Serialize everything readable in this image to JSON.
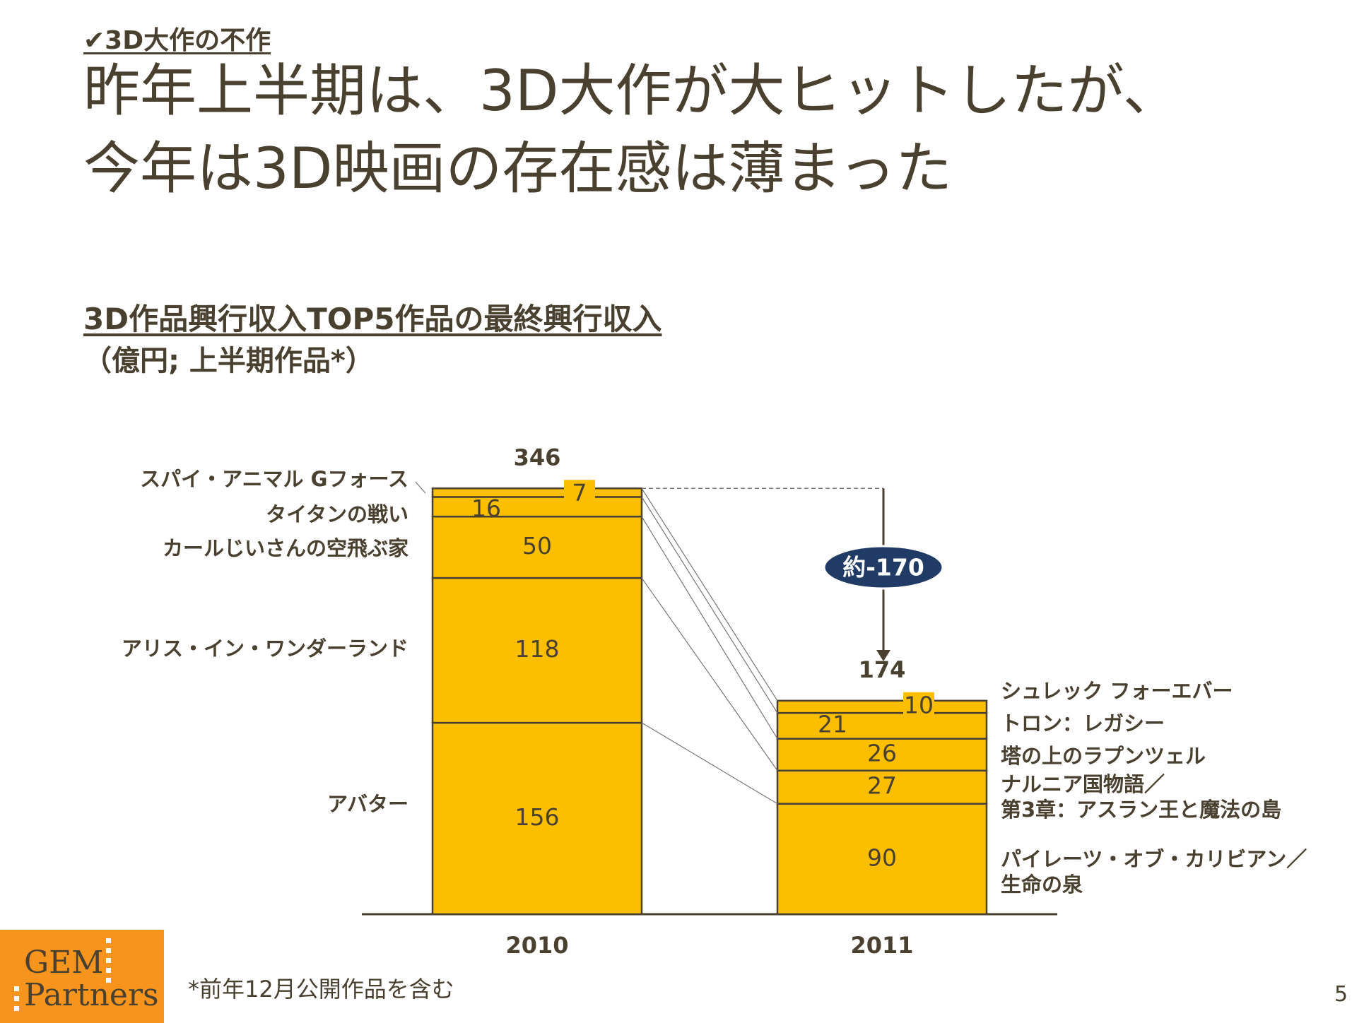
{
  "kicker": "✔3D大作の不作",
  "title_line1": "昨年上半期は、3D大作が大ヒットしたが、",
  "title_line2": "今年は3D映画の存在感は薄まった",
  "logo": {
    "line1": "GEM",
    "line2": "Partners"
  },
  "footnote": "*前年12月公開作品を含む",
  "page_number": "5",
  "colors": {
    "bar": "#fbbf00",
    "border": "#4a4030",
    "badge": "#1f3b66",
    "logo": "#f7941d"
  },
  "chart_data": {
    "type": "bar",
    "title": "3D作品興行収入TOP5作品の最終興行収入",
    "subtitle": "（億円; 上半期作品*）",
    "categories": [
      "2010",
      "2011"
    ],
    "stacked": true,
    "totals": [
      346,
      174
    ],
    "ylim": [
      0,
      346
    ],
    "stacks": [
      {
        "category": "2010",
        "segments": [
          {
            "name": "アバター",
            "value": 156
          },
          {
            "name": "アリス・イン・ワンダーランド",
            "value": 118
          },
          {
            "name": "カールじいさんの空飛ぶ家",
            "value": 50
          },
          {
            "name": "タイタンの戦い",
            "value": 16
          },
          {
            "name": "スパイ・アニマル Gフォース",
            "value": 7
          }
        ]
      },
      {
        "category": "2011",
        "segments": [
          {
            "name": "パイレーツ・オブ・カリビアン／生命の泉",
            "value": 90
          },
          {
            "name": "ナルニア国物語／第3章：アスラン王と魔法の島",
            "value": 27
          },
          {
            "name": "塔の上のラプンツェル",
            "value": 26
          },
          {
            "name": "トロン：レガシー",
            "value": 21
          },
          {
            "name": "シュレック フォーエバー",
            "value": 10
          }
        ]
      }
    ],
    "annotation": "約-170"
  }
}
